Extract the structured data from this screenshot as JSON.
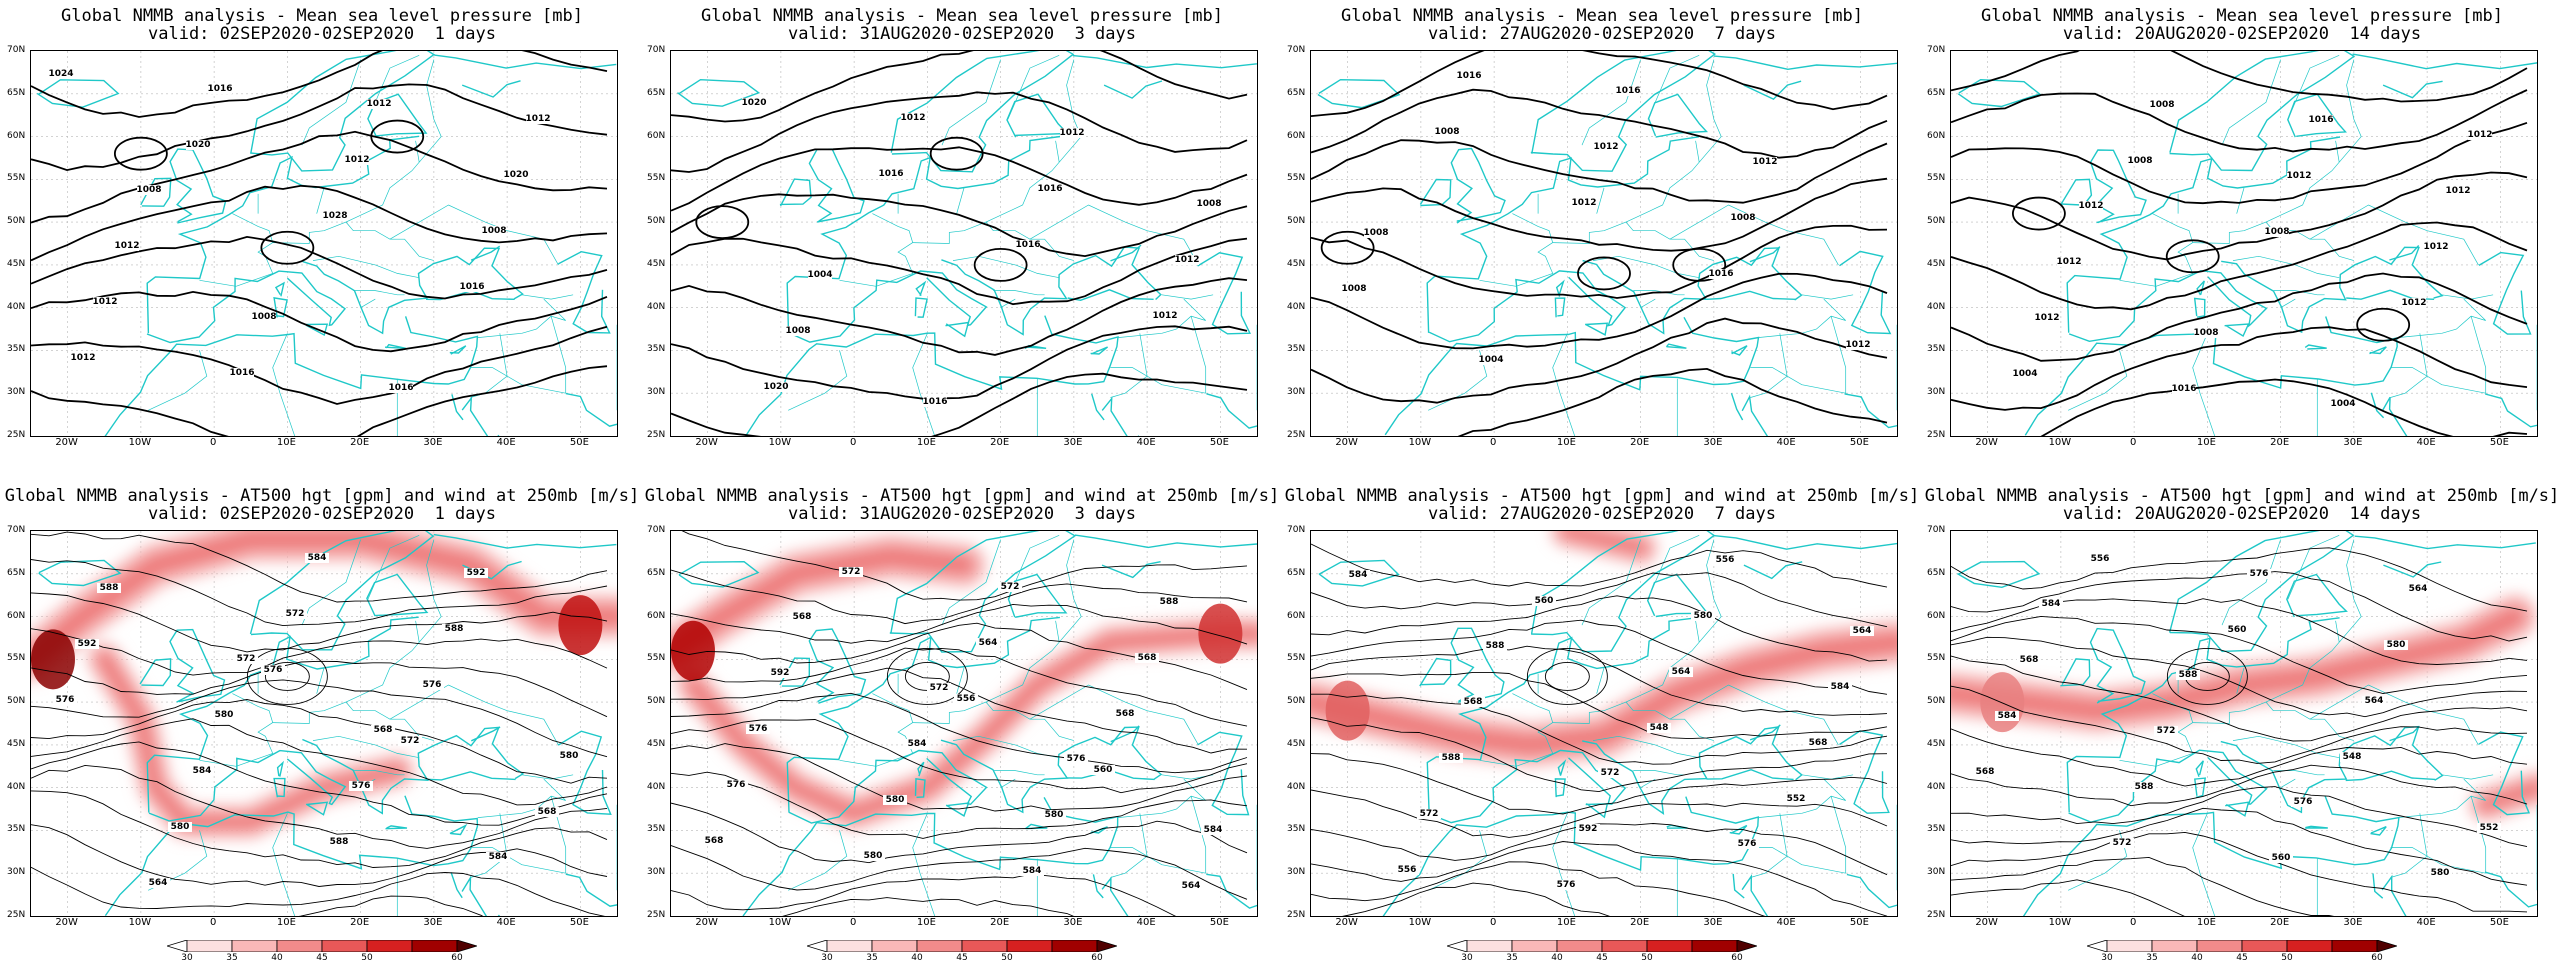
{
  "panels": [
    {
      "line1": "Global NMMB analysis - Mean sea level pressure [mb]",
      "line2": "valid: 02SEP2020-02SEP2020  1 days",
      "contour_labels": [
        "1024",
        "1020",
        "1028",
        "1016",
        "1012",
        "1016",
        "1012",
        "1008",
        "1012",
        "1016",
        "1012",
        "1020",
        "1012",
        "1008",
        "1016",
        "1012",
        "1008"
      ]
    },
    {
      "line1": "Global NMMB analysis - Mean sea level pressure [mb]",
      "line2": "valid: 31AUG2020-02SEP2020  3 days",
      "contour_labels": [
        "1020",
        "1016",
        "1016",
        "1012",
        "1020",
        "1012",
        "1016",
        "1012",
        "1008",
        "1016",
        "1012",
        "1008",
        "1004"
      ]
    },
    {
      "line1": "Global NMMB analysis - Mean sea level pressure [mb]",
      "line2": "valid: 27AUG2020-02SEP2020  7 days",
      "contour_labels": [
        "1008",
        "1012",
        "1016",
        "1012",
        "1016",
        "1012",
        "1008",
        "1008",
        "1004",
        "1016",
        "1012",
        "1008"
      ]
    },
    {
      "line1": "Global NMMB analysis - Mean sea level pressure [mb]",
      "line2": "valid: 20AUG2020-02SEP2020  14 days",
      "contour_labels": [
        "1008",
        "1008",
        "1012",
        "1004",
        "1008",
        "1012",
        "1012",
        "1012",
        "1016",
        "1016",
        "1012",
        "1012",
        "1008",
        "1004",
        "1012",
        "1012"
      ]
    },
    {
      "line1": "Global NMMB analysis - AT500 hgt [gpm] and wind at 250mb [m/s]",
      "line2": "valid: 02SEP2020-02SEP2020  1 days",
      "contour_labels": [
        "576",
        "572",
        "568",
        "564",
        "572",
        "576",
        "580",
        "580",
        "584",
        "588",
        "576",
        "584",
        "588",
        "592",
        "592",
        "580",
        "576",
        "584",
        "588",
        "572",
        "568"
      ]
    },
    {
      "line1": "Global NMMB analysis - AT500 hgt [gpm] and wind at 250mb [m/s]",
      "line2": "valid: 31AUG2020-02SEP2020  3 days",
      "contour_labels": [
        "556",
        "560",
        "568",
        "572",
        "564",
        "568",
        "576",
        "580",
        "572",
        "568",
        "576",
        "580",
        "584",
        "588",
        "592",
        "584",
        "580",
        "564",
        "568",
        "572",
        "576",
        "584"
      ]
    },
    {
      "line1": "Global NMMB analysis - AT500 hgt [gpm] and wind at 250mb [m/s]",
      "line2": "valid: 27AUG2020-02SEP2020  7 days",
      "contour_labels": [
        "548",
        "552",
        "556",
        "560",
        "564",
        "568",
        "572",
        "576",
        "580",
        "584",
        "588",
        "592",
        "556",
        "564",
        "568",
        "572",
        "576",
        "584",
        "588"
      ]
    },
    {
      "line1": "Global NMMB analysis - AT500 hgt [gpm] and wind at 250mb [m/s]",
      "line2": "valid: 20AUG2020-02SEP2020  14 days",
      "contour_labels": [
        "548",
        "552",
        "556",
        "560",
        "564",
        "568",
        "572",
        "576",
        "580",
        "584",
        "588",
        "560",
        "564",
        "568",
        "572",
        "576",
        "580",
        "584",
        "588"
      ]
    }
  ],
  "axes": {
    "lat_labels": [
      "70N",
      "65N",
      "60N",
      "55N",
      "50N",
      "45N",
      "40N",
      "35N",
      "30N",
      "25N"
    ],
    "lon_labels": [
      "20W",
      "10W",
      "0",
      "10E",
      "20E",
      "30E",
      "40E",
      "50E"
    ]
  },
  "colorbar": {
    "labels": [
      "30",
      "35",
      "40",
      "45",
      "50",
      "60"
    ],
    "colors": [
      "#ffffff",
      "#fde0e0",
      "#f9b8b8",
      "#f28b8b",
      "#e85858",
      "#d62020",
      "#a00000",
      "#500000"
    ]
  },
  "colors": {
    "coast": "#1fc8c8",
    "contour": "#000000",
    "wind": "#e03030"
  }
}
